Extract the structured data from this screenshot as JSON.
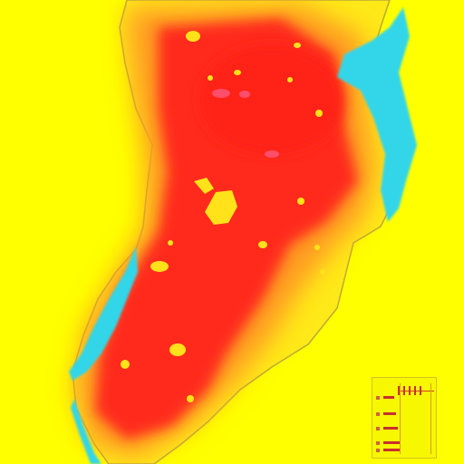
{
  "map": {
    "background_color": "#ffff00",
    "heat_colors": [
      "#ff2a1a",
      "#ff5a1e",
      "#ff9a20",
      "#ffd21c"
    ],
    "water_color": "#31d6e8",
    "coast_color": "#b8a63a"
  },
  "legend": {
    "visible": true,
    "label_text": ""
  }
}
